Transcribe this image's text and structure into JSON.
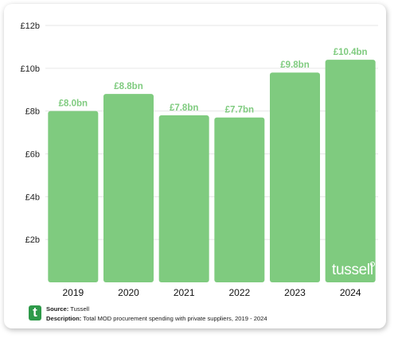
{
  "chart_data": {
    "type": "bar",
    "categories": [
      "2019",
      "2020",
      "2021",
      "2022",
      "2023",
      "2024"
    ],
    "values": [
      8.0,
      8.8,
      7.8,
      7.7,
      9.8,
      10.4
    ],
    "data_labels": [
      "£8.0bn",
      "£8.8bn",
      "£7.8bn",
      "£7.7bn",
      "£9.8bn",
      "£10.4bn"
    ],
    "y_ticks": [
      {
        "value": 2,
        "label": "£2b"
      },
      {
        "value": 4,
        "label": "£4b"
      },
      {
        "value": 6,
        "label": "£6b"
      },
      {
        "value": 8,
        "label": "£8b"
      },
      {
        "value": 10,
        "label": "£10b"
      },
      {
        "value": 12,
        "label": "£12b"
      }
    ],
    "ylim": [
      0,
      12
    ],
    "grid": true,
    "bar_color": "#7fcb7f",
    "label_color": "#7fcb7f",
    "title": "",
    "xlabel": "",
    "ylabel": ""
  },
  "footer": {
    "logo_letter": "t",
    "source_label": "Source:",
    "source_value": "Tussell",
    "description_label": "Description:",
    "description_value": "Total MOD procurement spending with private suppliers, 2019 - 2024"
  },
  "watermark": {
    "text": "tussell"
  }
}
